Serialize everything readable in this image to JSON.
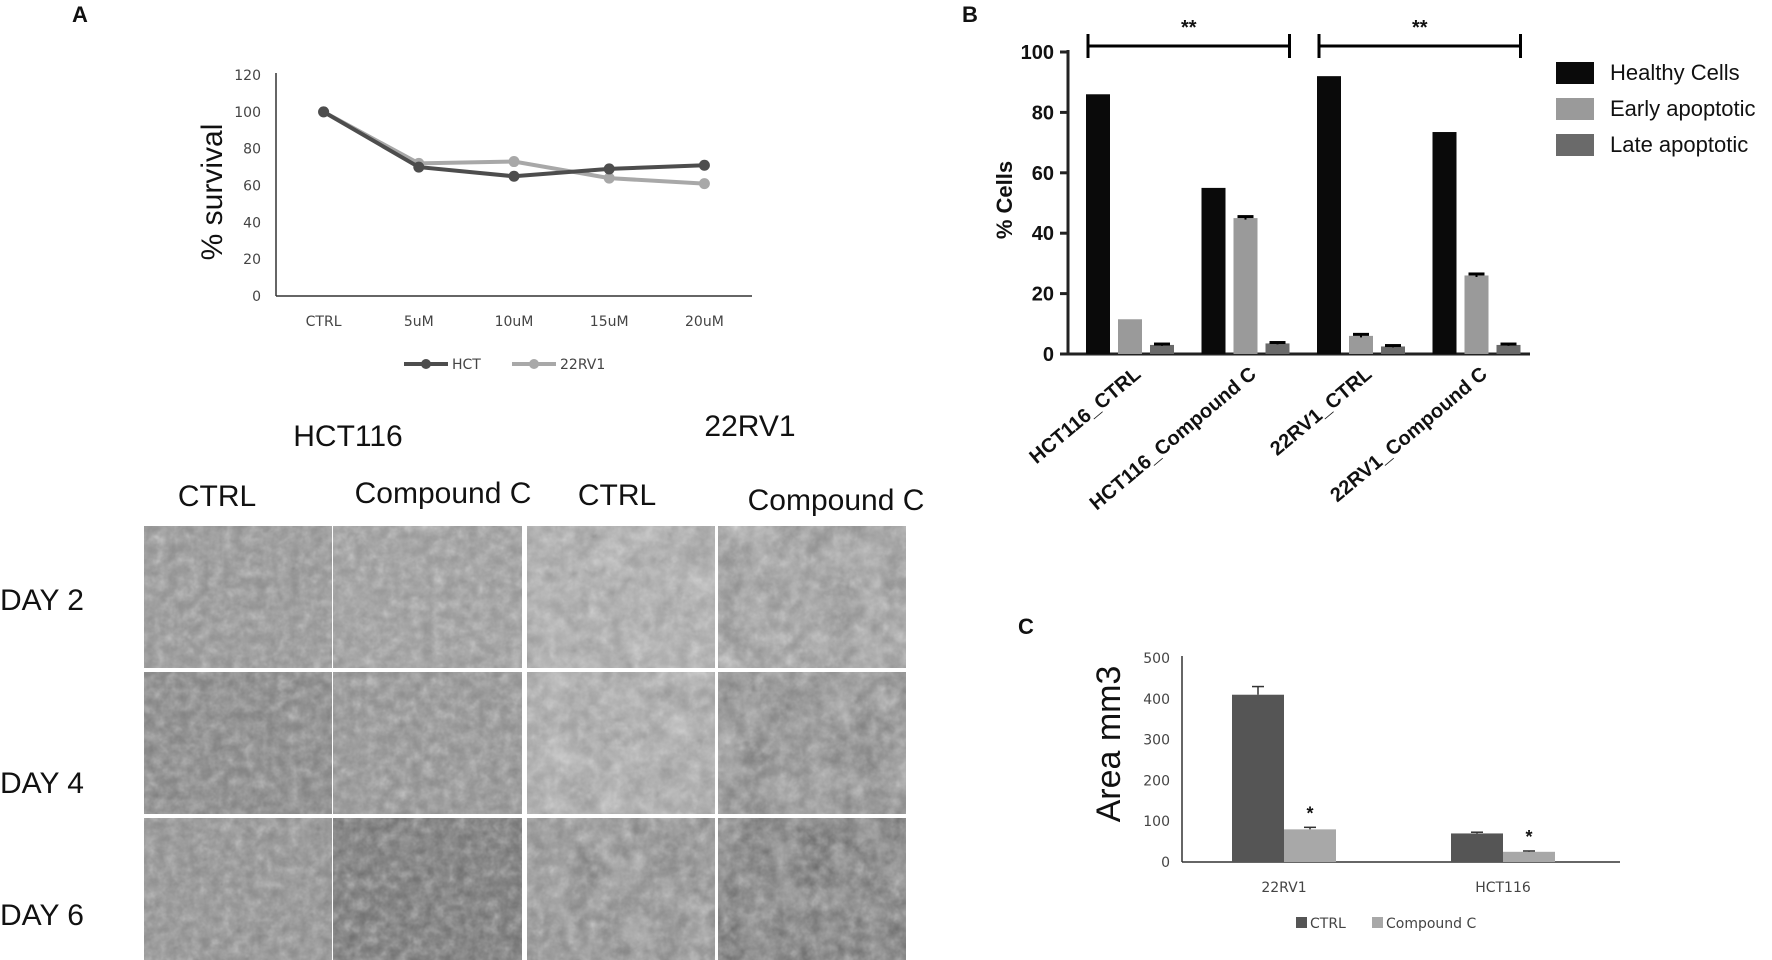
{
  "panel_labels": {
    "a": "A",
    "b": "B",
    "c": "C"
  },
  "microscopy": {
    "groups": [
      "HCT116",
      "22RV1"
    ],
    "columns": [
      "CTRL",
      "Compound C",
      "CTRL",
      "Compound C"
    ],
    "rows": [
      "DAY 2",
      "DAY 4",
      "DAY 6"
    ]
  },
  "colors": {
    "dark": "#4d4d4d",
    "light": "#a8a8a8",
    "black": "#0a0a0a",
    "mid_gray": "#9a9a9a",
    "dark_gray": "#6a6a6a"
  },
  "chart_data": [
    {
      "type": "line",
      "categories": [
        "CTRL",
        "5uM",
        "10uM",
        "15uM",
        "20uM"
      ],
      "series": [
        {
          "name": "HCT",
          "values": [
            100,
            70,
            65,
            69,
            71
          ],
          "color": "#4d4d4d"
        },
        {
          "name": "22RV1",
          "values": [
            100,
            72,
            73,
            64,
            61
          ],
          "color": "#a8a8a8"
        }
      ],
      "ylabel": "% survival",
      "yticks": [
        0,
        20,
        40,
        60,
        80,
        100,
        120
      ],
      "ylim": [
        0,
        120
      ],
      "grid": false,
      "legend": "bottom"
    },
    {
      "type": "bar",
      "categories": [
        "HCT116_CTRL",
        "HCT116_Compound C",
        "22RV1_CTRL",
        "22RV1_Compound C"
      ],
      "series": [
        {
          "name": "Healthy Cells",
          "values": [
            86,
            55,
            92,
            73.5
          ],
          "errors": [
            0,
            0,
            0,
            0
          ],
          "color": "#0a0a0a"
        },
        {
          "name": "Early apoptotic",
          "values": [
            11.5,
            45,
            6,
            26
          ],
          "errors": [
            0,
            0.5,
            0.5,
            0.5
          ],
          "color": "#9a9a9a"
        },
        {
          "name": "Late apoptotic",
          "values": [
            3,
            3.5,
            2.5,
            3
          ],
          "errors": [
            0.3,
            0.3,
            0.3,
            0.3
          ],
          "color": "#6a6a6a"
        }
      ],
      "ylabel": "% Cells",
      "yticks": [
        0,
        20,
        40,
        60,
        80,
        100
      ],
      "ylim": [
        0,
        100
      ],
      "significance": [
        {
          "from": "HCT116_CTRL",
          "to": "HCT116_Compound C",
          "label": "**"
        },
        {
          "from": "22RV1_CTRL",
          "to": "22RV1_Compound C",
          "label": "**"
        }
      ],
      "grid": false,
      "legend": "top-right"
    },
    {
      "type": "bar",
      "categories": [
        "22RV1",
        "HCT116"
      ],
      "series": [
        {
          "name": "CTRL",
          "values": [
            410,
            70
          ],
          "errors": [
            20,
            3
          ],
          "color": "#555555"
        },
        {
          "name": "Compound C",
          "values": [
            80,
            25
          ],
          "errors": [
            5,
            2
          ],
          "color": "#a8a8a8"
        }
      ],
      "ylabel": "Area mm3",
      "yticks": [
        0,
        100,
        200,
        300,
        400,
        500
      ],
      "ylim": [
        0,
        500
      ],
      "significance_marks": [
        "*",
        "*"
      ],
      "grid": false,
      "legend": "bottom"
    }
  ]
}
